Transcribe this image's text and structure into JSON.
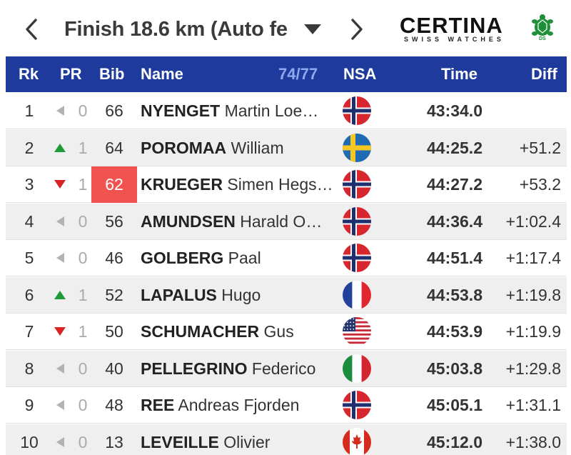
{
  "header": {
    "race_title": "Finish 18.6 km (Auto fe",
    "sponsor_name": "CERTINA",
    "sponsor_sub": "SWISS WATCHES"
  },
  "columns": {
    "rank": "Rk",
    "pr": "PR",
    "bib": "Bib",
    "name": "Name",
    "count": "74/77",
    "nsa": "NSA",
    "time": "Time",
    "diff": "Diff"
  },
  "rows": [
    {
      "rank": "1",
      "pr_dir": "same",
      "pr": "0",
      "bib": "66",
      "highlight": false,
      "last": "NYENGET",
      "first": "Martin Loe…",
      "nsa": "NOR",
      "time": "43:34.0",
      "diff": ""
    },
    {
      "rank": "2",
      "pr_dir": "up",
      "pr": "1",
      "bib": "64",
      "highlight": false,
      "last": "POROMAA",
      "first": "William",
      "nsa": "SWE",
      "time": "44:25.2",
      "diff": "+51.2"
    },
    {
      "rank": "3",
      "pr_dir": "down",
      "pr": "1",
      "bib": "62",
      "highlight": true,
      "last": "KRUEGER",
      "first": "Simen Hegs…",
      "nsa": "NOR",
      "time": "44:27.2",
      "diff": "+53.2"
    },
    {
      "rank": "4",
      "pr_dir": "same",
      "pr": "0",
      "bib": "56",
      "highlight": false,
      "last": "AMUNDSEN",
      "first": "Harald O…",
      "nsa": "NOR",
      "time": "44:36.4",
      "diff": "+1:02.4"
    },
    {
      "rank": "5",
      "pr_dir": "same",
      "pr": "0",
      "bib": "46",
      "highlight": false,
      "last": "GOLBERG",
      "first": "Paal",
      "nsa": "NOR",
      "time": "44:51.4",
      "diff": "+1:17.4"
    },
    {
      "rank": "6",
      "pr_dir": "up",
      "pr": "1",
      "bib": "52",
      "highlight": false,
      "last": "LAPALUS",
      "first": "Hugo",
      "nsa": "FRA",
      "time": "44:53.8",
      "diff": "+1:19.8"
    },
    {
      "rank": "7",
      "pr_dir": "down",
      "pr": "1",
      "bib": "50",
      "highlight": false,
      "last": "SCHUMACHER",
      "first": "Gus",
      "nsa": "USA",
      "time": "44:53.9",
      "diff": "+1:19.9"
    },
    {
      "rank": "8",
      "pr_dir": "same",
      "pr": "0",
      "bib": "40",
      "highlight": false,
      "last": "PELLEGRINO",
      "first": "Federico",
      "nsa": "ITA",
      "time": "45:03.8",
      "diff": "+1:29.8"
    },
    {
      "rank": "9",
      "pr_dir": "same",
      "pr": "0",
      "bib": "48",
      "highlight": false,
      "last": "REE",
      "first": "Andreas Fjorden",
      "nsa": "NOR",
      "time": "45:05.1",
      "diff": "+1:31.1"
    },
    {
      "rank": "10",
      "pr_dir": "same",
      "pr": "0",
      "bib": "13",
      "highlight": false,
      "last": "LEVEILLE",
      "first": "Olivier",
      "nsa": "CAN",
      "time": "45:12.0",
      "diff": "+1:38.0"
    }
  ],
  "colors": {
    "header_bg": "#1d3a9c",
    "header_count": "#8fa8ee",
    "bib_highlight": "#f05350",
    "pr_up": "#1e9a36",
    "pr_down": "#d82424",
    "pr_same": "#b2b2b2",
    "alt_row": "#efefef"
  }
}
